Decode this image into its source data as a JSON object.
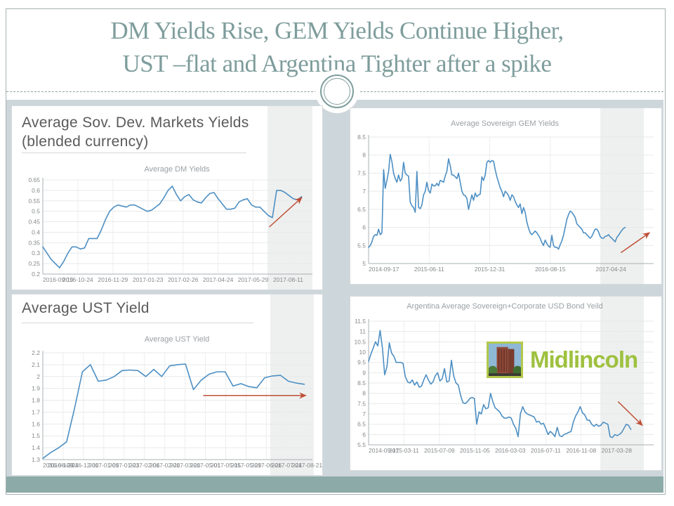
{
  "slide": {
    "title_line1": "DM Yields Rise, GEM Yields Continue Higher,",
    "title_line2": "UST –flat and Argentina Tighter after a spike",
    "colors": {
      "title_text": "#7e9d9c",
      "accent_bar": "#8caaa8",
      "content_background": "#cdd6da",
      "line": "#4d8fc3",
      "arrow": "#bf5038",
      "highlight_band": "#eef0ef",
      "logo_green": "#9ec13f"
    }
  },
  "panels": {
    "dm": {
      "heading_line1": "Average Sov. Dev. Markets Yields",
      "heading_line2": "(blended currency)"
    },
    "ust": {
      "heading": "Average UST Yield"
    },
    "gem": {},
    "arg": {
      "logo_text": "Midlincoln"
    }
  },
  "chart_data": [
    {
      "type": "line",
      "title": "Average DM Yields",
      "ylim": [
        0.2,
        0.65
      ],
      "yticks": [
        "0.65",
        "0.6",
        "0.55",
        "0.5",
        "0.45",
        "0.4",
        "0.35",
        "0.3",
        "0.25",
        "0.2"
      ],
      "xlabels": [
        "2016-09-19",
        "2016-10-24",
        "2016-11-29",
        "2017-01-23",
        "2017-02-26",
        "2017-04-24",
        "2017-05-29",
        "2017-08-11"
      ],
      "xspan": 0.91,
      "linespan": 0.96,
      "values": [
        0.33,
        0.3,
        0.27,
        0.25,
        0.23,
        0.26,
        0.3,
        0.33,
        0.33,
        0.32,
        0.325,
        0.37,
        0.37,
        0.37,
        0.41,
        0.46,
        0.5,
        0.52,
        0.53,
        0.525,
        0.52,
        0.53,
        0.53,
        0.52,
        0.51,
        0.5,
        0.505,
        0.52,
        0.535,
        0.565,
        0.6,
        0.62,
        0.58,
        0.55,
        0.57,
        0.58,
        0.555,
        0.545,
        0.54,
        0.565,
        0.585,
        0.59,
        0.56,
        0.535,
        0.51,
        0.51,
        0.515,
        0.545,
        0.555,
        0.56,
        0.53,
        0.52,
        0.52,
        0.5,
        0.48,
        0.47,
        0.6,
        0.6,
        0.59,
        0.575,
        0.56,
        0.555,
        0.57
      ],
      "arrow": {
        "x1": 0.84,
        "y1": 0.425,
        "x2": 0.96,
        "y2": 0.565
      },
      "legend": "none",
      "grid": true
    },
    {
      "type": "line",
      "title": "Average Sovereign GEM Yields",
      "ylim": [
        5,
        8.5
      ],
      "yticks": [
        "8.5",
        "8",
        "7.5",
        "7",
        "6.5",
        "6",
        "5.5",
        "5"
      ],
      "xlabels": [
        "2014-09-17",
        "2015-06-11",
        "2015-12-31",
        "2016-08-15",
        "2017-04-24"
      ],
      "xspan": 0.85,
      "linespan": 0.9,
      "values": [
        5.45,
        5.5,
        5.6,
        5.75,
        5.8,
        5.78,
        5.95,
        5.8,
        5.85,
        7.6,
        7.08,
        7.3,
        7.55,
        8.02,
        7.82,
        7.5,
        7.35,
        7.25,
        7.45,
        7.28,
        7.35,
        7.8,
        7.5,
        7.45,
        7.42,
        6.7,
        6.6,
        6.55,
        6.42,
        7.55,
        6.55,
        6.52,
        6.62,
        6.9,
        7.0,
        7.25,
        7.02,
        6.95,
        7.2,
        7.15,
        7.15,
        7.22,
        7.15,
        7.3,
        7.28,
        7.25,
        7.42,
        7.55,
        7.9,
        7.7,
        7.45,
        7.45,
        7.4,
        7.35,
        7.5,
        7.25,
        7.0,
        6.9,
        6.88,
        6.8,
        6.5,
        6.7,
        6.9,
        6.75,
        6.95,
        6.85,
        6.9,
        6.92,
        7.4,
        7.3,
        7.45,
        7.8,
        7.85,
        7.8,
        7.85,
        7.83,
        7.6,
        7.4,
        7.25,
        7.1,
        7.0,
        6.85,
        7.0,
        6.95,
        6.88,
        6.75,
        6.9,
        6.85,
        6.72,
        6.62,
        6.55,
        6.65,
        6.38,
        6.55,
        6.42,
        6.15,
        5.98,
        5.85,
        5.8,
        5.85,
        5.9,
        5.85,
        5.78,
        5.7,
        5.58,
        5.5,
        5.65,
        5.55,
        5.48,
        5.45,
        5.78,
        5.5,
        5.45,
        5.45,
        5.4,
        5.52,
        5.62,
        5.78,
        6.0,
        6.22,
        6.35,
        6.45,
        6.42,
        6.35,
        6.28,
        6.1,
        6.05,
        6.0,
        5.95,
        5.85,
        5.85,
        5.8,
        5.75,
        5.7,
        5.75,
        5.85,
        5.95,
        5.95,
        5.88,
        5.75,
        5.7,
        5.7,
        5.75,
        5.76,
        5.8,
        5.74,
        5.7,
        5.65,
        5.6,
        5.72,
        5.78,
        5.85,
        5.92,
        5.97,
        6.0
      ],
      "arrow": {
        "x1": 0.885,
        "y1": 5.3,
        "x2": 0.985,
        "y2": 5.85
      },
      "legend": "none",
      "grid": true
    },
    {
      "type": "line",
      "title": "Average UST Yield",
      "ylim": [
        1.3,
        2.2
      ],
      "yticks": [
        "2.2",
        "2.1",
        "2",
        "1.9",
        "1.8",
        "1.7",
        "1.6",
        "1.5",
        "1.4",
        "1.3"
      ],
      "xlabels": [
        "2016-08-29",
        "2016-10-24",
        "2016-12-30",
        "2017-01-09",
        "2017-01-23",
        "2017-02-06",
        "2017-02-20",
        "2017-03-20",
        "2017-05-01",
        "2017-05-15",
        "2017-05-29",
        "2017-06-26",
        "2017-07-24",
        "2017-08-21"
      ],
      "xspan": 0.98,
      "linespan": 0.97,
      "values": [
        1.31,
        1.36,
        1.4,
        1.45,
        1.73,
        2.04,
        2.1,
        1.96,
        1.97,
        2.0,
        2.05,
        2.055,
        2.05,
        2.0,
        2.06,
        2.0,
        2.09,
        2.1,
        2.105,
        1.89,
        1.97,
        2.02,
        2.04,
        2.04,
        1.92,
        1.94,
        1.915,
        1.905,
        1.99,
        2.005,
        2.01,
        1.96,
        1.945,
        1.935
      ],
      "arrow": {
        "x1": 0.595,
        "y1": 1.84,
        "x2": 0.975,
        "y2": 1.84
      },
      "legend": "none",
      "grid": true
    },
    {
      "type": "line",
      "title": "Argentina Average Sovereign+Corporate  USD Bond Yeild",
      "ylim": [
        5.5,
        11.5
      ],
      "yticks": [
        "11.5",
        "11",
        "10.5",
        "10",
        "9.5",
        "9",
        "8.5",
        "8",
        "7.5",
        "7",
        "6.5",
        "6",
        "5.5"
      ],
      "xlabels": [
        "2014-09-17",
        "2015-03-11",
        "2015-07-09",
        "2015-11-05",
        "2016-03-03",
        "2016-07-11",
        "2016-11-08",
        "2017-03-28"
      ],
      "xspan": 0.87,
      "linespan": 0.92,
      "values": [
        9.55,
        9.9,
        10.2,
        10.5,
        10.3,
        11.05,
        10.2,
        8.9,
        9.3,
        10.45,
        9.95,
        9.8,
        9.5,
        9.5,
        9.5,
        9.45,
        8.8,
        8.55,
        8.5,
        8.65,
        8.4,
        8.55,
        8.3,
        8.35,
        8.65,
        8.9,
        8.65,
        8.45,
        8.55,
        8.85,
        9.0,
        8.6,
        8.7,
        9.2,
        8.55,
        8.6,
        9.6,
        8.85,
        8.5,
        8.4,
        7.9,
        7.55,
        7.5,
        7.6,
        7.75,
        7.8,
        7.75,
        6.5,
        7.1,
        7.0,
        7.45,
        7.25,
        7.3,
        8.0,
        7.6,
        7.3,
        7.2,
        7.1,
        6.9,
        6.8,
        6.8,
        6.85,
        6.8,
        6.5,
        6.3,
        5.9,
        7.0,
        7.35,
        7.1,
        7.0,
        6.95,
        6.9,
        6.85,
        6.6,
        6.65,
        6.5,
        6.55,
        6.3,
        6.0,
        6.15,
        6.05,
        5.9,
        6.35,
        5.95,
        5.9,
        6.0,
        6.05,
        6.1,
        6.15,
        6.6,
        6.9,
        7.1,
        7.35,
        7.05,
        6.95,
        6.7,
        6.7,
        6.5,
        6.4,
        6.5,
        6.4,
        6.45,
        6.6,
        6.55,
        6.5,
        5.9,
        5.85,
        6.0,
        5.95,
        6.0,
        6.1,
        6.3,
        6.5,
        6.45,
        6.25
      ],
      "arrow": {
        "x1": 0.875,
        "y1": 7.6,
        "x2": 0.96,
        "y2": 6.45
      },
      "legend": "none",
      "grid": true
    }
  ]
}
